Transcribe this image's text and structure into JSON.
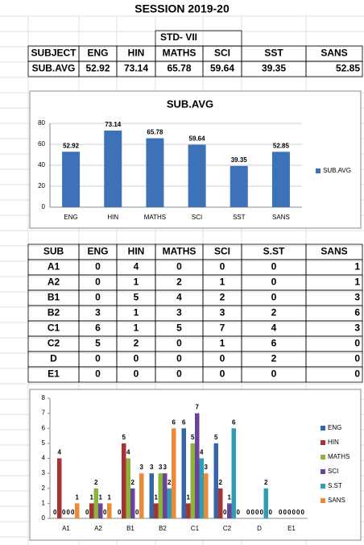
{
  "title": "SESSION 2019-20",
  "table1": {
    "caption": "STD- VII",
    "header": [
      "SUBJECT",
      "ENG",
      "HIN",
      "MATHS",
      "SCI",
      "SST",
      "SANS"
    ],
    "rows": [
      [
        "SUB.AVG",
        52.92,
        73.14,
        65.78,
        59.64,
        39.35,
        52.85
      ]
    ]
  },
  "table2": {
    "header": [
      "SUB",
      "ENG",
      "HIN",
      "MATHS",
      "SCI",
      "S.ST",
      "SANS"
    ],
    "rows": [
      [
        "A1",
        0,
        4,
        0,
        0,
        0,
        1
      ],
      [
        "A2",
        0,
        1,
        2,
        1,
        0,
        1
      ],
      [
        "B1",
        0,
        5,
        4,
        2,
        0,
        3
      ],
      [
        "B2",
        3,
        1,
        3,
        3,
        2,
        6
      ],
      [
        "C1",
        6,
        1,
        5,
        7,
        4,
        3
      ],
      [
        "C2",
        5,
        2,
        0,
        1,
        6,
        0
      ],
      [
        "D",
        0,
        0,
        0,
        0,
        2,
        0
      ],
      [
        "E1",
        0,
        0,
        0,
        0,
        0,
        0
      ]
    ]
  },
  "chart_data": [
    {
      "type": "bar",
      "title": "SUB.AVG",
      "categories": [
        "ENG",
        "HIN",
        "MATHS",
        "SCI",
        "SST",
        "SANS"
      ],
      "series": [
        {
          "name": "SUB.AVG",
          "color": "#3d72b8",
          "values": [
            52.92,
            73.14,
            65.78,
            59.64,
            39.35,
            52.85
          ]
        }
      ],
      "ylim": [
        0,
        80
      ],
      "yticks": [
        0,
        20,
        40,
        60,
        80
      ],
      "grid": true,
      "legend": "right"
    },
    {
      "type": "bar",
      "categories": [
        "A1",
        "A2",
        "B1",
        "B2",
        "C1",
        "C2",
        "D",
        "E1"
      ],
      "series": [
        {
          "name": "ENG",
          "color": "#3466a8",
          "values": [
            0,
            0,
            0,
            3,
            6,
            5,
            0,
            0
          ]
        },
        {
          "name": "HIN",
          "color": "#a83232",
          "values": [
            4,
            1,
            5,
            1,
            1,
            2,
            0,
            0
          ]
        },
        {
          "name": "MATHS",
          "color": "#8cb43c",
          "values": [
            0,
            2,
            4,
            3,
            5,
            0,
            0,
            0
          ]
        },
        {
          "name": "SCI",
          "color": "#6b4399",
          "values": [
            0,
            1,
            2,
            3,
            7,
            1,
            0,
            0
          ]
        },
        {
          "name": "S.ST",
          "color": "#2f9db4",
          "values": [
            0,
            0,
            0,
            2,
            4,
            6,
            2,
            0
          ]
        },
        {
          "name": "SANS",
          "color": "#ee8a36",
          "values": [
            1,
            1,
            3,
            6,
            3,
            0,
            0,
            0
          ]
        }
      ],
      "ylim": [
        0,
        8
      ],
      "yticks": [
        0,
        1,
        2,
        3,
        4,
        5,
        6,
        7,
        8
      ],
      "grid": false,
      "legend": "right"
    }
  ]
}
